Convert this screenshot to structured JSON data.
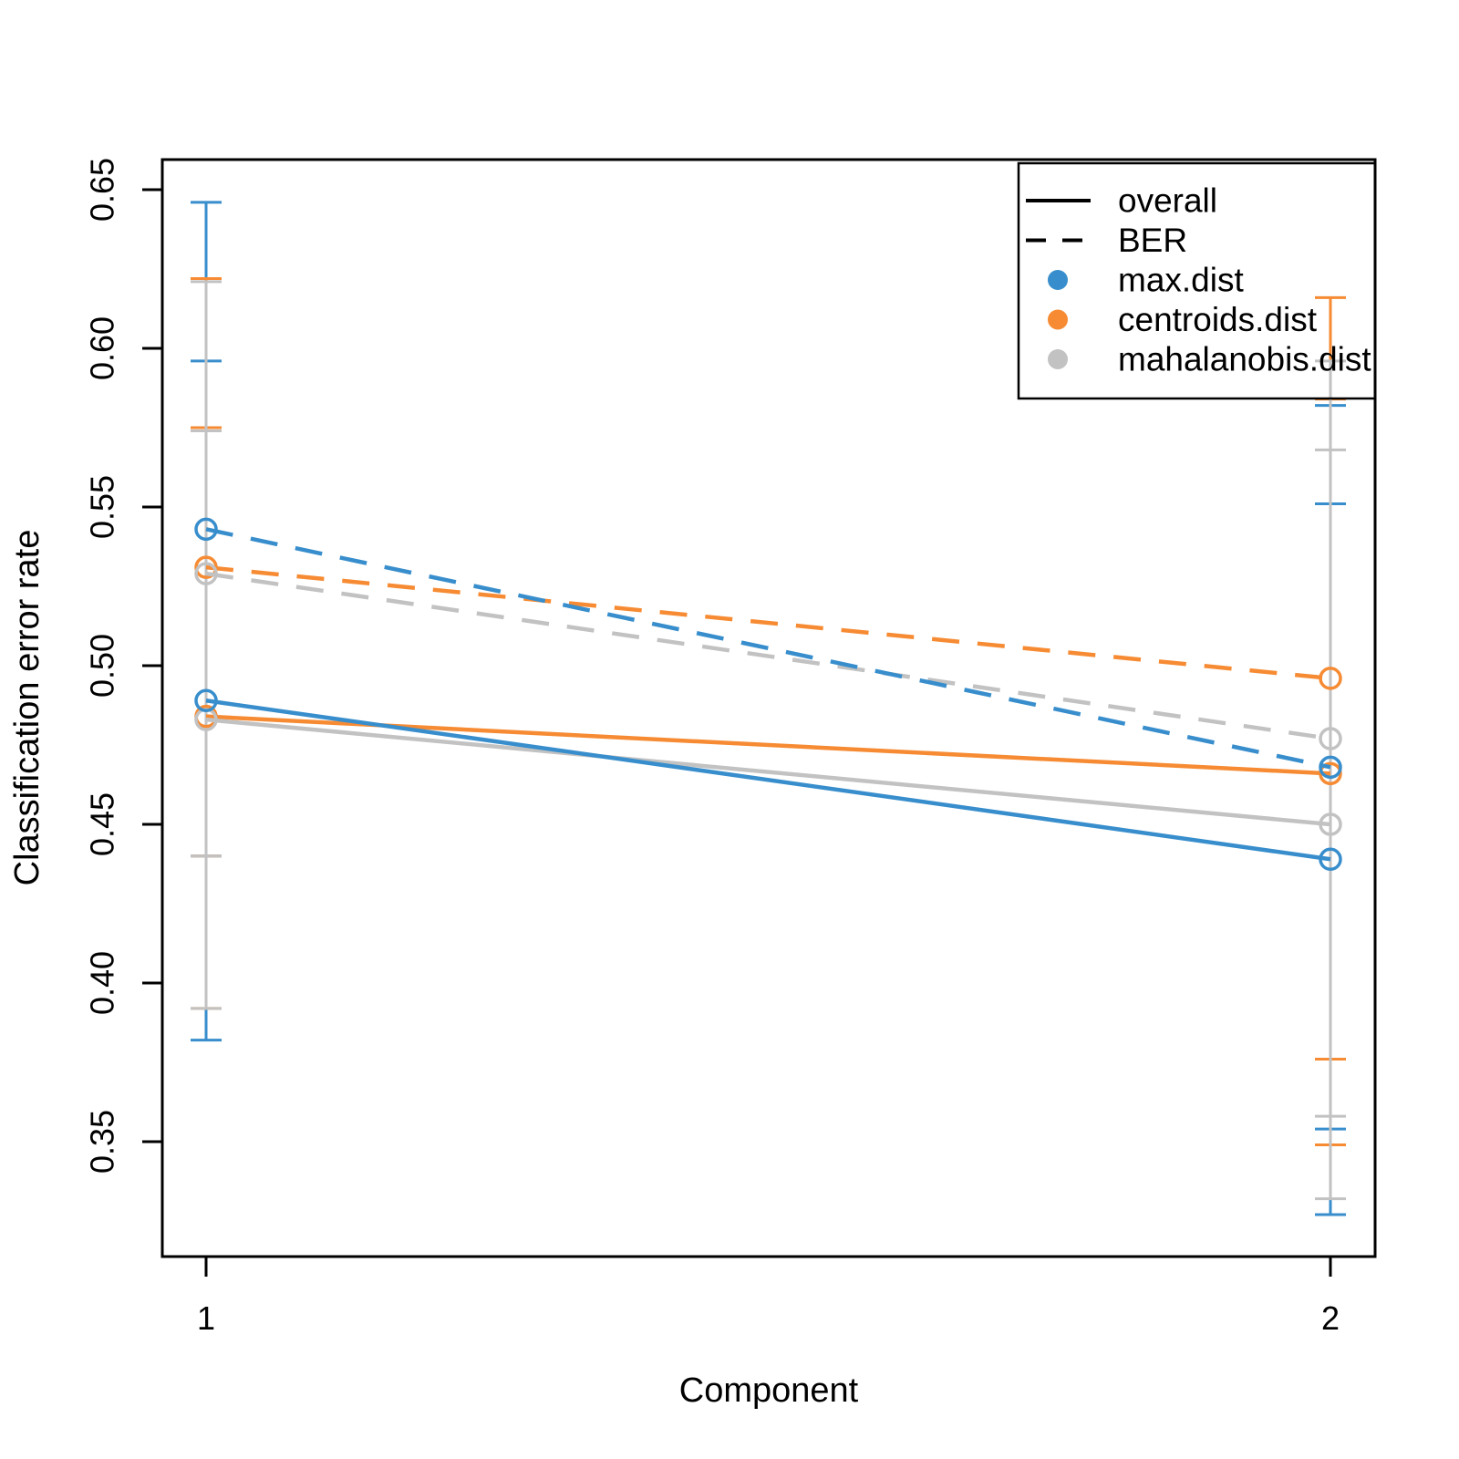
{
  "chart_data": {
    "type": "line",
    "title": "",
    "xlabel": "Component",
    "ylabel": "Classification error rate",
    "x": [
      1,
      2
    ],
    "x_tick_labels": [
      "1",
      "2"
    ],
    "y_ticks": [
      0.35,
      0.4,
      0.45,
      0.5,
      0.55,
      0.6,
      0.65
    ],
    "ylim": [
      0.314,
      0.6595
    ],
    "xlim": [
      0.95,
      2.05
    ],
    "grid": false,
    "point_marker": "open-circle",
    "colors": {
      "max_dist": "#388ECC",
      "centroids_dist": "#F68B33",
      "mahalanobis_dist": "#C2C2C2",
      "axis": "#000000"
    },
    "legend": {
      "position": "top-right",
      "line_styles": [
        {
          "label": "overall",
          "style": "solid"
        },
        {
          "label": "BER",
          "style": "dashed"
        }
      ],
      "color_keys": [
        {
          "label": "max.dist",
          "color": "#388ECC"
        },
        {
          "label": "centroids.dist",
          "color": "#F68B33"
        },
        {
          "label": "mahalanobis.dist",
          "color": "#C2C2C2"
        }
      ]
    },
    "series": [
      {
        "name": "max.dist overall",
        "distance": "max.dist",
        "measure": "overall",
        "color": "#388ECC",
        "style": "solid",
        "values": [
          0.489,
          0.439
        ],
        "error_lower": [
          0.382,
          0.327
        ],
        "error_upper": [
          0.596,
          0.551
        ]
      },
      {
        "name": "max.dist BER",
        "distance": "max.dist",
        "measure": "BER",
        "color": "#388ECC",
        "style": "dashed",
        "values": [
          0.543,
          0.468
        ],
        "error_lower": [
          0.44,
          0.354
        ],
        "error_upper": [
          0.646,
          0.582
        ]
      },
      {
        "name": "centroids.dist overall",
        "distance": "centroids.dist",
        "measure": "overall",
        "color": "#F68B33",
        "style": "solid",
        "values": [
          0.484,
          0.466
        ],
        "error_lower": [
          0.392,
          0.349
        ],
        "error_upper": [
          0.575,
          0.584
        ]
      },
      {
        "name": "centroids.dist BER",
        "distance": "centroids.dist",
        "measure": "BER",
        "color": "#F68B33",
        "style": "dashed",
        "values": [
          0.531,
          0.496
        ],
        "error_lower": [
          0.44,
          0.376
        ],
        "error_upper": [
          0.622,
          0.616
        ]
      },
      {
        "name": "mahalanobis.dist overall",
        "distance": "mahalanobis.dist",
        "measure": "overall",
        "color": "#C2C2C2",
        "style": "solid",
        "values": [
          0.483,
          0.45
        ],
        "error_lower": [
          0.392,
          0.332
        ],
        "error_upper": [
          0.574,
          0.568
        ]
      },
      {
        "name": "mahalanobis.dist BER",
        "distance": "mahalanobis.dist",
        "measure": "BER",
        "color": "#C2C2C2",
        "style": "dashed",
        "values": [
          0.529,
          0.477
        ],
        "error_lower": [
          0.44,
          0.358
        ],
        "error_upper": [
          0.621,
          0.596
        ]
      }
    ]
  }
}
